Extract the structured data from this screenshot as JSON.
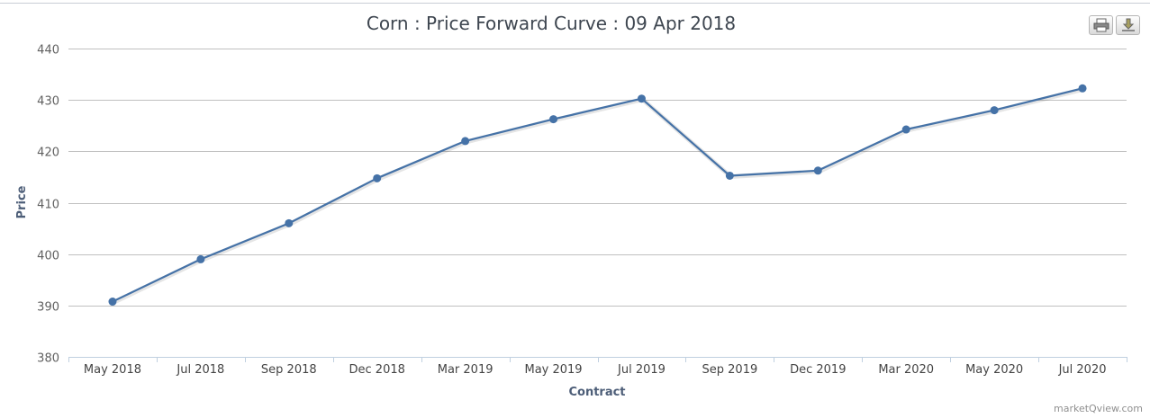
{
  "chart_data": {
    "type": "line",
    "title": "Corn : Price Forward Curve : 09 Apr 2018",
    "xlabel": "Contract",
    "ylabel": "Price",
    "categories": [
      "May 2018",
      "Jul 2018",
      "Sep 2018",
      "Dec 2018",
      "Mar 2019",
      "May 2019",
      "Jul 2019",
      "Sep 2019",
      "Dec 2019",
      "Mar 2020",
      "May 2020",
      "Jul 2020"
    ],
    "series": [
      {
        "values": [
          390.75,
          399.0,
          406.0,
          414.75,
          422.0,
          426.25,
          430.25,
          415.25,
          416.25,
          424.25,
          428.0,
          432.25
        ]
      }
    ],
    "ylim": [
      380,
      440
    ],
    "yticks": [
      380,
      390,
      400,
      410,
      420,
      430,
      440
    ],
    "grid": "horizontal",
    "legend": "none",
    "line_color": "#4572a7"
  },
  "toolbar": {
    "print_icon": "print-icon",
    "download_icon": "download-icon"
  },
  "credits": "marketQview.com"
}
